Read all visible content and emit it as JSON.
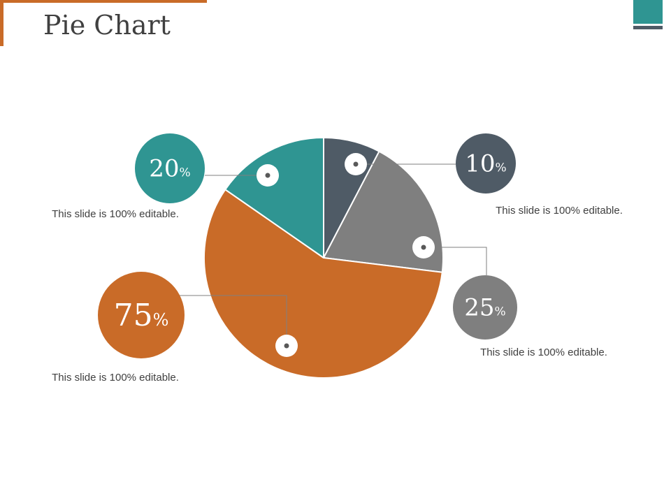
{
  "header": {
    "title": "Pie Chart"
  },
  "colors": {
    "accent": "#c96b28",
    "teal": "#2f9592",
    "slate": "#4f5b66",
    "gray": "#7f7f7f",
    "orange": "#c96b28"
  },
  "chart_data": {
    "type": "pie",
    "title": "",
    "slices": [
      {
        "value": 10,
        "number": "10",
        "unit": "%",
        "color": "#4f5b66",
        "caption": "This slide is 100% editable."
      },
      {
        "value": 25,
        "number": "25",
        "unit": "%",
        "color": "#7f7f7f",
        "caption": "This slide is 100% editable."
      },
      {
        "value": 75,
        "number": "75",
        "unit": "%",
        "color": "#c96b28",
        "caption": "This slide is 100% editable."
      },
      {
        "value": 20,
        "number": "20",
        "unit": "%",
        "color": "#2f9592",
        "caption": "This slide is 100% editable."
      }
    ],
    "start_angle_deg": 0,
    "direction": "clockwise",
    "legend": "none"
  }
}
